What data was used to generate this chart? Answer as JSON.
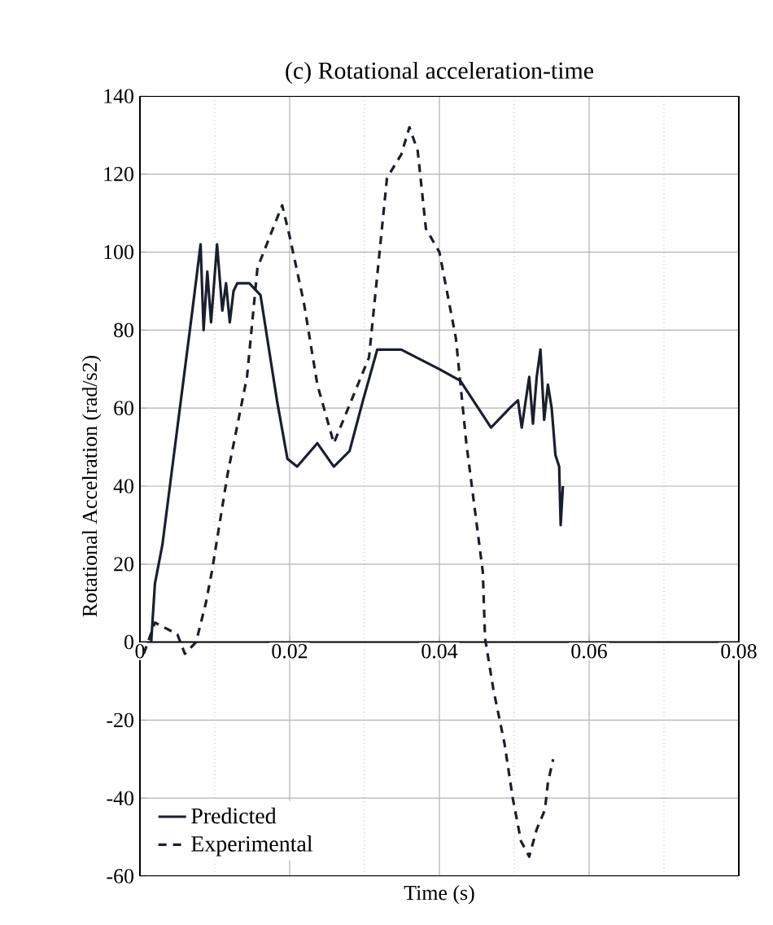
{
  "chart_data": {
    "type": "line",
    "title": "(c) Rotational acceleration-time",
    "xlabel": "Time (s)",
    "ylabel": "Rotational Accelration (rad/s2)",
    "xlim": [
      0,
      0.08
    ],
    "xticks": [
      0,
      0.02,
      0.04,
      0.06,
      0.08
    ],
    "ylim": [
      -60,
      140
    ],
    "yticks": [
      -60,
      -40,
      -20,
      0,
      20,
      40,
      60,
      80,
      100,
      120,
      140
    ],
    "grid": true,
    "legend": "bottom left",
    "series": [
      {
        "name": "Predicted",
        "color": "#1a1f2e",
        "line_style": "solid",
        "x": [
          0.0015,
          0.002,
          0.003,
          0.005,
          0.007,
          0.0081,
          0.0085,
          0.009,
          0.0095,
          0.0103,
          0.011,
          0.0115,
          0.012,
          0.0125,
          0.013,
          0.0146,
          0.0161,
          0.0183,
          0.0197,
          0.021,
          0.0237,
          0.0259,
          0.028,
          0.0298,
          0.0317,
          0.0349,
          0.04,
          0.0428,
          0.0469,
          0.0494,
          0.0505,
          0.051,
          0.052,
          0.0525,
          0.053,
          0.0535,
          0.054,
          0.0545,
          0.055,
          0.0555,
          0.056,
          0.0562,
          0.0565
        ],
        "values": [
          0,
          15,
          25,
          55,
          85,
          102,
          80,
          95,
          82,
          102,
          85,
          92,
          82,
          90,
          92,
          92,
          89,
          62,
          47,
          45,
          51,
          45,
          49,
          62,
          75,
          75,
          70,
          67,
          55,
          60,
          62,
          55,
          68,
          56,
          68,
          75,
          57,
          66,
          60,
          48,
          45,
          30,
          40
        ]
      },
      {
        "name": "Experimental",
        "color": "#1a1f2e",
        "line_style": "dashed",
        "x": [
          0.0005,
          0.002,
          0.003,
          0.005,
          0.006,
          0.0075,
          0.0088,
          0.0096,
          0.0117,
          0.0143,
          0.0157,
          0.019,
          0.02,
          0.0219,
          0.0237,
          0.0259,
          0.0306,
          0.033,
          0.0349,
          0.036,
          0.0371,
          0.0382,
          0.04,
          0.0422,
          0.0436,
          0.0458,
          0.0461,
          0.0472,
          0.0487,
          0.0498,
          0.0509,
          0.052,
          0.053,
          0.0541,
          0.0545,
          0.0552
        ],
        "values": [
          -3,
          5,
          4,
          2,
          -3,
          0,
          10,
          18,
          43,
          68,
          96,
          112,
          104,
          87,
          66,
          51,
          73,
          119,
          125,
          132,
          126,
          106,
          100,
          78,
          51,
          18,
          1,
          -12,
          -26,
          -40,
          -51,
          -55,
          -48,
          -43,
          -36,
          -30
        ]
      }
    ]
  }
}
